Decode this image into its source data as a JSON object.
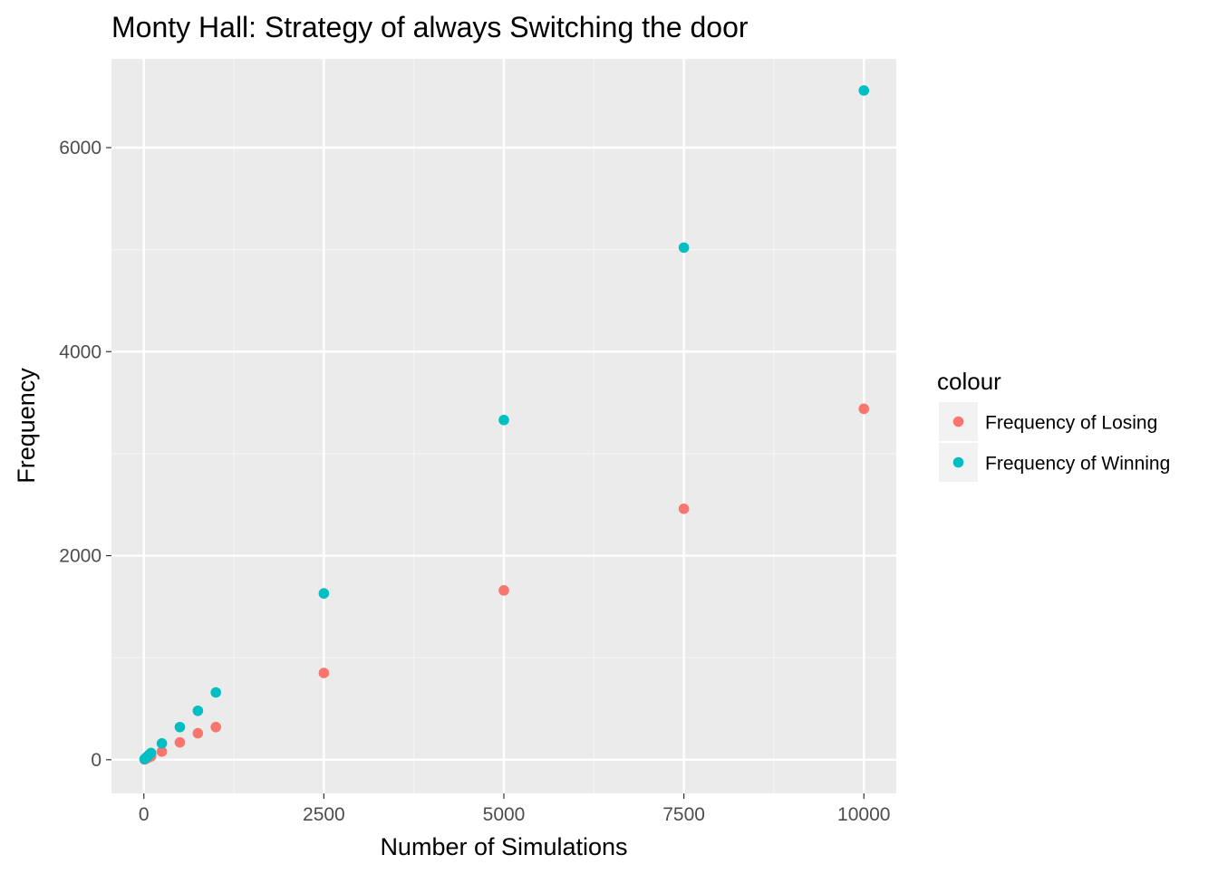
{
  "chart_data": {
    "type": "scatter",
    "title": "Monty Hall: Strategy of always Switching the door",
    "xlabel": "Number of Simulations",
    "ylabel": "Frequency",
    "xlim": [
      -450,
      10450
    ],
    "ylim": [
      -330,
      6870
    ],
    "x_ticks": [
      0,
      2500,
      5000,
      7500,
      10000
    ],
    "x_tick_labels": [
      "0",
      "2500",
      "5000",
      "7500",
      "10000"
    ],
    "y_ticks": [
      0,
      2000,
      4000,
      6000
    ],
    "y_tick_labels": [
      "0",
      "2000",
      "4000",
      "6000"
    ],
    "grid": true,
    "legend": {
      "title": "colour",
      "position": "right"
    },
    "series": [
      {
        "name": "Frequency of Losing",
        "color": "#F8766D",
        "x": [
          10,
          25,
          50,
          75,
          100,
          250,
          500,
          750,
          1000,
          2500,
          5000,
          7500,
          10000
        ],
        "y": [
          3,
          8,
          17,
          25,
          34,
          80,
          170,
          260,
          320,
          850,
          1660,
          2460,
          3440
        ]
      },
      {
        "name": "Frequency of Winning",
        "color": "#00BFC4",
        "x": [
          10,
          25,
          50,
          75,
          100,
          250,
          500,
          750,
          1000,
          2500,
          5000,
          7500,
          10000
        ],
        "y": [
          7,
          17,
          33,
          50,
          66,
          160,
          320,
          480,
          660,
          1630,
          3330,
          5020,
          6560
        ]
      }
    ]
  },
  "colors": {
    "panel_background": "#EBEBEB",
    "grid_major": "#FFFFFF",
    "grid_minor": "#F5F5F5",
    "legend_key_background": "#F2F2F2"
  }
}
